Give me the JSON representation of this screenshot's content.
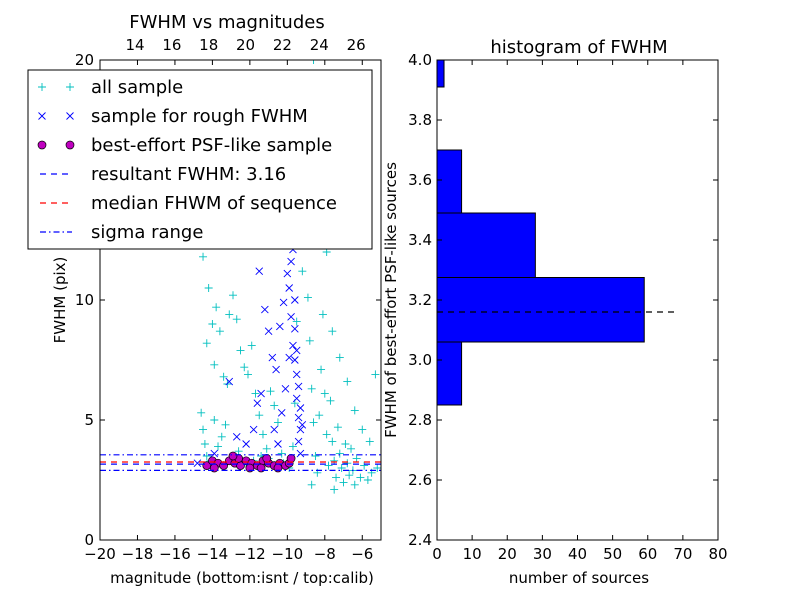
{
  "chart_data": [
    {
      "type": "scatter",
      "title": "FWHM vs magnitudes",
      "xlabel": "magnitude (bottom:isnt / top:calib)",
      "ylabel": "FWHM (pix)",
      "xlim": [
        -20,
        -5
      ],
      "ylim": [
        0,
        20
      ],
      "top_xlim": [
        12.1,
        27.35
      ],
      "xticks": [
        {
          "v": -20,
          "label": "−20"
        },
        {
          "v": -18,
          "label": "−18"
        },
        {
          "v": -16,
          "label": "−16"
        },
        {
          "v": -14,
          "label": "−14"
        },
        {
          "v": -12,
          "label": "−12"
        },
        {
          "v": -10,
          "label": "−10"
        },
        {
          "v": -8,
          "label": "−8"
        },
        {
          "v": -6,
          "label": "−6"
        }
      ],
      "top_xticks": [
        {
          "v": 14,
          "label": "14"
        },
        {
          "v": 16,
          "label": "16"
        },
        {
          "v": 18,
          "label": "18"
        },
        {
          "v": 20,
          "label": "20"
        },
        {
          "v": 22,
          "label": "22"
        },
        {
          "v": 24,
          "label": "24"
        },
        {
          "v": 26,
          "label": "26"
        }
      ],
      "yticks": [
        {
          "v": 0,
          "label": "0"
        },
        {
          "v": 5,
          "label": "5"
        },
        {
          "v": 10,
          "label": "10"
        },
        {
          "v": 20,
          "label": "20"
        }
      ],
      "legend_position": "top-left",
      "series": [
        {
          "name": "all sample",
          "marker": "+",
          "color": "#00bfbf",
          "points": [
            [
              -14.5,
              11.8
            ],
            [
              -14.2,
              10.5
            ],
            [
              -14.0,
              9.0
            ],
            [
              -14.3,
              8.2
            ],
            [
              -13.8,
              9.7
            ],
            [
              -13.6,
              8.7
            ],
            [
              -13.4,
              6.8
            ],
            [
              -13.9,
              7.3
            ],
            [
              -13.2,
              6.5
            ],
            [
              -14.6,
              5.3
            ],
            [
              -14.5,
              4.6
            ],
            [
              -14.4,
              4.0
            ],
            [
              -14.3,
              3.5
            ],
            [
              -14.1,
              3.3
            ],
            [
              -13.9,
              5.0
            ],
            [
              -13.7,
              3.9
            ],
            [
              -13.5,
              4.3
            ],
            [
              -13.3,
              4.8
            ],
            [
              -13.1,
              9.4
            ],
            [
              -12.9,
              10.2
            ],
            [
              -12.7,
              9.2
            ],
            [
              -12.5,
              7.9
            ],
            [
              -12.3,
              7.2
            ],
            [
              -12.1,
              6.9
            ],
            [
              -11.9,
              8.1
            ],
            [
              -11.7,
              6.1
            ],
            [
              -11.5,
              5.2
            ],
            [
              -11.3,
              4.4
            ],
            [
              -11.1,
              3.8
            ],
            [
              -10.9,
              6.2
            ],
            [
              -10.7,
              5.6
            ],
            [
              -10.5,
              4.9
            ],
            [
              -10.3,
              3.6
            ],
            [
              -13.0,
              3.4
            ],
            [
              -12.6,
              3.7
            ],
            [
              -12.2,
              3.2
            ],
            [
              -11.8,
              3.3
            ],
            [
              -11.4,
              3.5
            ],
            [
              -11.0,
              3.4
            ],
            [
              -10.6,
              3.1
            ],
            [
              -10.2,
              3.2
            ],
            [
              -9.9,
              3.0
            ],
            [
              -9.7,
              3.9
            ],
            [
              -9.6,
              5.7
            ],
            [
              -9.5,
              9.1
            ],
            [
              -9.4,
              14.2
            ],
            [
              -9.3,
              17.6
            ],
            [
              -9.1,
              16.4
            ],
            [
              -9.2,
              11.2
            ],
            [
              -9.0,
              12.6
            ],
            [
              -8.9,
              10.1
            ],
            [
              -8.8,
              8.3
            ],
            [
              -8.7,
              6.3
            ],
            [
              -8.6,
              4.9
            ],
            [
              -8.5,
              3.5
            ],
            [
              -8.4,
              2.8
            ],
            [
              -8.3,
              5.2
            ],
            [
              -8.2,
              7.1
            ],
            [
              -8.1,
              9.4
            ],
            [
              -8.0,
              6.1
            ],
            [
              -7.9,
              4.4
            ],
            [
              -7.8,
              3.1
            ],
            [
              -7.7,
              5.8
            ],
            [
              -7.6,
              4.1
            ],
            [
              -7.5,
              3.3
            ],
            [
              -7.4,
              2.6
            ],
            [
              -7.3,
              4.7
            ],
            [
              -7.2,
              3.6
            ],
            [
              -7.1,
              3.0
            ],
            [
              -7.0,
              2.4
            ],
            [
              -6.9,
              4.0
            ],
            [
              -6.8,
              3.2
            ],
            [
              -6.7,
              2.7
            ],
            [
              -6.6,
              3.8
            ],
            [
              -6.5,
              2.9
            ],
            [
              -6.4,
              2.3
            ],
            [
              -6.3,
              3.4
            ],
            [
              -6.1,
              2.6
            ],
            [
              -5.9,
              3.1
            ],
            [
              -5.7,
              2.5
            ],
            [
              -5.5,
              2.8
            ],
            [
              -5.3,
              6.9
            ],
            [
              -5.2,
              3.0
            ],
            [
              -8.6,
              20.0
            ],
            [
              -8.3,
              13.1
            ],
            [
              -7.9,
              12.0
            ],
            [
              -8.9,
              18.2
            ],
            [
              -9.8,
              15.1
            ],
            [
              -7.6,
              8.7
            ],
            [
              -7.2,
              7.6
            ],
            [
              -6.8,
              6.6
            ],
            [
              -6.4,
              5.4
            ],
            [
              -6.0,
              4.6
            ],
            [
              -5.6,
              4.1
            ],
            [
              -8.7,
              2.3
            ],
            [
              -7.5,
              2.1
            ]
          ]
        },
        {
          "name": "sample for rough FWHM",
          "marker": "x",
          "color": "#0000ff",
          "points": [
            [
              -13.1,
              6.6
            ],
            [
              -12.4,
              13.0
            ],
            [
              -11.7,
              12.5
            ],
            [
              -11.5,
              11.2
            ],
            [
              -11.2,
              9.6
            ],
            [
              -11.0,
              8.7
            ],
            [
              -10.8,
              7.6
            ],
            [
              -10.6,
              7.1
            ],
            [
              -10.4,
              8.9
            ],
            [
              -10.2,
              9.9
            ],
            [
              -10.0,
              12.4
            ],
            [
              -10.0,
              11.1
            ],
            [
              -9.9,
              10.5
            ],
            [
              -9.8,
              9.3
            ],
            [
              -9.7,
              8.1
            ],
            [
              -9.6,
              7.5
            ],
            [
              -9.5,
              6.9
            ],
            [
              -9.5,
              5.9
            ],
            [
              -9.4,
              5.1
            ],
            [
              -9.3,
              4.6
            ],
            [
              -9.4,
              4.1
            ],
            [
              -9.3,
              3.6
            ],
            [
              -9.7,
              12.1
            ],
            [
              -9.8,
              11.6
            ],
            [
              -11.6,
              5.7
            ],
            [
              -11.8,
              4.6
            ],
            [
              -12.2,
              4.0
            ],
            [
              -12.7,
              4.3
            ],
            [
              -14.8,
              3.2
            ],
            [
              -13.9,
              3.6
            ],
            [
              -10.5,
              4.0
            ],
            [
              -10.3,
              5.3
            ],
            [
              -10.1,
              6.3
            ],
            [
              -9.9,
              7.6
            ],
            [
              -9.6,
              10.0
            ],
            [
              -9.6,
              8.8
            ],
            [
              -9.5,
              7.9
            ],
            [
              -9.4,
              6.4
            ],
            [
              -9.3,
              5.5
            ],
            [
              -10.7,
              4.6
            ],
            [
              -9.2,
              4.8
            ],
            [
              -11.4,
              6.1
            ]
          ]
        },
        {
          "name": "best-effort PSF-like sample",
          "marker": "o",
          "color": "#bf00bf",
          "points": [
            [
              -14.3,
              3.1
            ],
            [
              -14.0,
              3.3
            ],
            [
              -13.7,
              3.2
            ],
            [
              -13.4,
              3.1
            ],
            [
              -13.1,
              3.3
            ],
            [
              -12.8,
              3.2
            ],
            [
              -12.5,
              3.1
            ],
            [
              -12.2,
              3.3
            ],
            [
              -11.9,
              3.2
            ],
            [
              -11.6,
              3.1
            ],
            [
              -11.3,
              3.3
            ],
            [
              -11.0,
              3.2
            ],
            [
              -10.7,
              3.1
            ],
            [
              -10.4,
              3.2
            ],
            [
              -10.1,
              3.1
            ],
            [
              -9.9,
              3.2
            ],
            [
              -13.9,
              3.0
            ],
            [
              -12.6,
              3.4
            ],
            [
              -12.0,
              3.0
            ],
            [
              -11.1,
              3.4
            ],
            [
              -10.5,
              3.0
            ],
            [
              -9.8,
              3.4
            ],
            [
              -12.9,
              3.5
            ],
            [
              -11.4,
              3.0
            ]
          ]
        }
      ],
      "hlines": [
        {
          "name": "resultant FWHM: 3.16",
          "y": 3.16,
          "style": "dashed",
          "color": "#0000ff"
        },
        {
          "name": "median FHWM of sequence",
          "y": 3.25,
          "style": "dashed",
          "color": "#ff0000"
        },
        {
          "name": "sigma range",
          "y": 3.55,
          "style": "dashdot",
          "color": "#0000ff"
        },
        {
          "name": "sigma range",
          "y": 2.9,
          "style": "dashdot",
          "color": "#0000ff"
        }
      ],
      "legend": [
        {
          "label": "all sample",
          "marker": "+",
          "color": "#00bfbf"
        },
        {
          "label": "sample for rough FWHM",
          "marker": "x",
          "color": "#0000ff"
        },
        {
          "label": "best-effort PSF-like sample",
          "marker": "o",
          "color": "#bf00bf"
        },
        {
          "label": "resultant FWHM: 3.16",
          "marker": "dashed",
          "color": "#0000ff"
        },
        {
          "label": "median FHWM of sequence",
          "marker": "dashed",
          "color": "#ff0000"
        },
        {
          "label": "sigma range",
          "marker": "dashdot",
          "color": "#0000ff"
        }
      ]
    },
    {
      "type": "bar",
      "orientation": "horizontal",
      "title": "histogram of FWHM",
      "xlabel": "number of sources",
      "ylabel": "FWHM of best-effort PSF-like sources",
      "xlim": [
        0,
        80
      ],
      "ylim": [
        2.4,
        4.0
      ],
      "xticks": [
        0,
        10,
        20,
        30,
        40,
        50,
        60,
        70,
        80
      ],
      "yticks": [
        "2.4",
        "2.6",
        "2.8",
        "3.0",
        "3.2",
        "3.4",
        "3.6",
        "3.8",
        "4.0"
      ],
      "bar_color": "#0000ff",
      "bins": [
        {
          "y0": 2.85,
          "y1": 3.06,
          "count": 7
        },
        {
          "y0": 3.06,
          "y1": 3.275,
          "count": 59
        },
        {
          "y0": 3.275,
          "y1": 3.49,
          "count": 28
        },
        {
          "y0": 3.49,
          "y1": 3.7,
          "count": 7
        },
        {
          "y0": 3.7,
          "y1": 3.91,
          "count": 0
        },
        {
          "y0": 3.91,
          "y1": 4.13,
          "count": 2
        }
      ],
      "reference_line": {
        "y": 3.16,
        "x_end": 68.7,
        "style": "dashed",
        "color": "#000000"
      }
    }
  ]
}
